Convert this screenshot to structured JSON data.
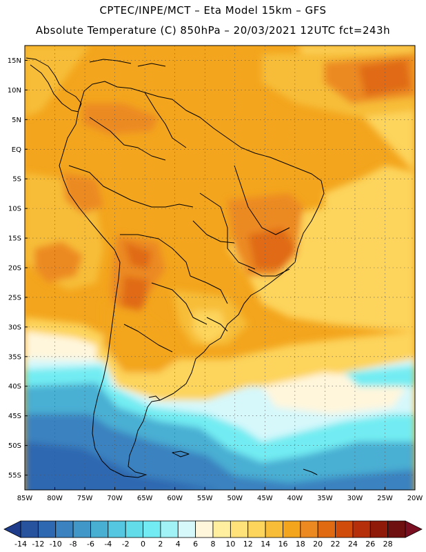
{
  "header": {
    "line1": "CPTEC/INPE/MCT –  Eta Model 15km – GFS",
    "line2": "Absolute Temperature (C) 850hPa – 20/03/2021 12UTC fct=243h"
  },
  "axes": {
    "lat_labels": [
      "15N",
      "10N",
      "5N",
      "EQ",
      "5S",
      "10S",
      "15S",
      "20S",
      "25S",
      "30S",
      "35S",
      "40S",
      "45S",
      "50S",
      "55S"
    ],
    "lon_labels": [
      "85W",
      "80W",
      "75W",
      "70W",
      "65W",
      "60W",
      "55W",
      "50W",
      "45W",
      "40W",
      "35W",
      "30W",
      "25W",
      "20W"
    ],
    "lat_range": [
      17.5,
      -57.5
    ],
    "lon_range": [
      -85,
      -20
    ],
    "grid": true
  },
  "colorbar": {
    "labels": [
      "-14",
      "-12",
      "-10",
      "-8",
      "-6",
      "-4",
      "-2",
      "0",
      "2",
      "4",
      "6",
      "8",
      "10",
      "12",
      "14",
      "16",
      "18",
      "20",
      "22",
      "24",
      "26",
      "28"
    ],
    "colors": [
      "#1f3c8a",
      "#27529e",
      "#2d68b0",
      "#3a82c0",
      "#4198c8",
      "#48afd3",
      "#55c7e0",
      "#63dcea",
      "#72ecf2",
      "#a0f2f7",
      "#d6f8fb",
      "#fff6dc",
      "#ffef9e",
      "#ffe37a",
      "#fdd45c",
      "#f7bd38",
      "#f3a51d",
      "#ec8a21",
      "#e06a12",
      "#cf4c0b",
      "#b52f0a",
      "#8f1a0a",
      "#6f1010",
      "#7a0f22"
    ]
  }
}
